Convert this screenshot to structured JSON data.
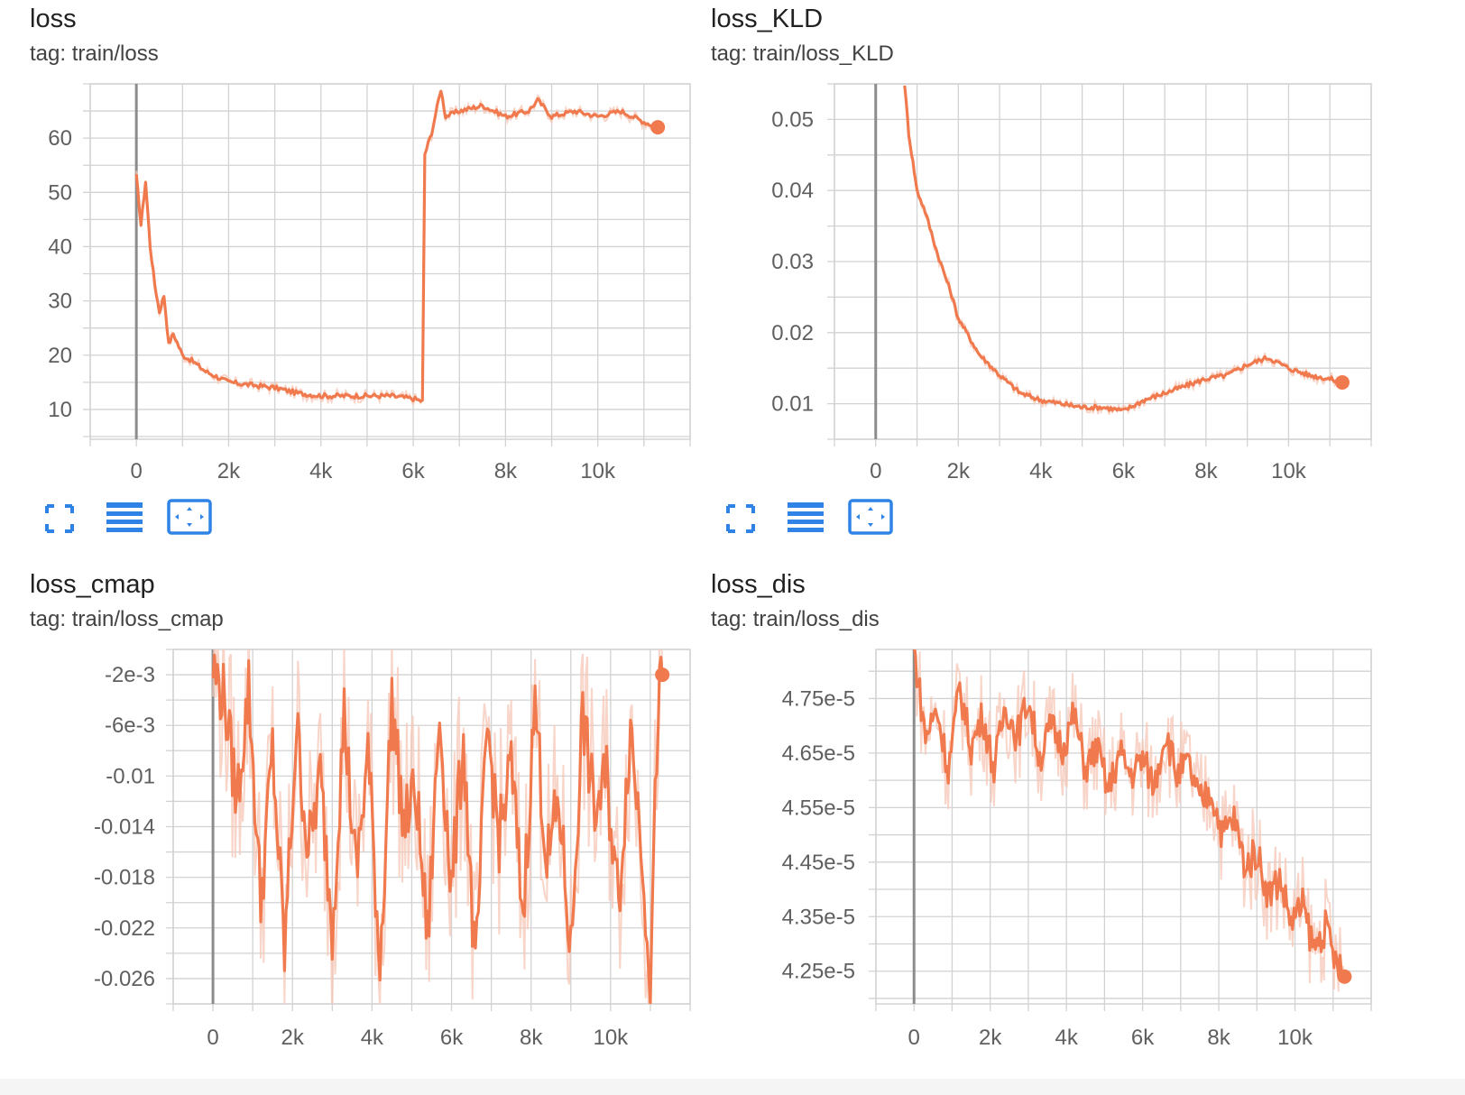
{
  "theme": {
    "line": "#f07a4d",
    "smooth_band": "#f6c7b5",
    "grid": "#d2d2d2",
    "zero_axis": "#8c8c8c",
    "toolbar_icon": "#2f83e6"
  },
  "toolbar": [
    {
      "name": "fullscreen-icon",
      "label": ""
    },
    {
      "name": "data-table-icon",
      "label": ""
    },
    {
      "name": "fit-domain-icon",
      "label": ""
    }
  ],
  "chart_data": [
    {
      "type": "line",
      "title": "loss",
      "tag": "tag: train/loss",
      "xlabel": "",
      "ylabel": "",
      "xlim": [
        -1000,
        12000
      ],
      "ylim": [
        4.5,
        70
      ],
      "xticks": [
        0,
        2000,
        4000,
        6000,
        8000,
        10000
      ],
      "xtick_labels": [
        "0",
        "2k",
        "4k",
        "6k",
        "8k",
        "10k"
      ],
      "yticks": [
        10,
        20,
        30,
        40,
        50,
        60
      ],
      "ytick_labels": [
        "10",
        "20",
        "30",
        "40",
        "50",
        "60"
      ],
      "grid": true,
      "series": [
        {
          "x": [
            0,
            100,
            200,
            300,
            400,
            500,
            600,
            700,
            800,
            1000,
            1200,
            1500,
            2000,
            2500,
            3000,
            3500,
            4000,
            4500,
            5000,
            5500,
            6000,
            6200,
            6250,
            6400,
            6600,
            6700,
            7000,
            7500,
            8000,
            8500,
            8700,
            9000,
            9500,
            10000,
            10500,
            11000,
            11300
          ],
          "y": [
            53,
            44,
            52,
            40,
            33,
            28,
            31,
            22,
            24,
            20,
            19,
            17,
            15,
            14.5,
            14,
            13,
            12.5,
            12.5,
            12.5,
            12.5,
            12,
            11.5,
            57,
            61,
            69,
            64,
            65,
            66,
            64,
            65,
            67,
            64,
            65,
            64,
            65,
            63,
            62
          ]
        }
      ]
    },
    {
      "type": "line",
      "title": "loss_KLD",
      "tag": "tag: train/loss_KLD",
      "xlabel": "",
      "ylabel": "",
      "xlim": [
        -1000,
        12000
      ],
      "ylim": [
        0.005,
        0.055
      ],
      "xticks": [
        0,
        2000,
        4000,
        6000,
        8000,
        10000
      ],
      "xtick_labels": [
        "0",
        "2k",
        "4k",
        "6k",
        "8k",
        "10k"
      ],
      "yticks": [
        0.01,
        0.02,
        0.03,
        0.04,
        0.05
      ],
      "ytick_labels": [
        "0.01",
        "0.02",
        "0.03",
        "0.04",
        "0.05"
      ],
      "grid": true,
      "series": [
        {
          "x": [
            700,
            800,
            900,
            1000,
            1200,
            1500,
            1800,
            2000,
            2500,
            3000,
            3500,
            4000,
            4500,
            5000,
            5500,
            6000,
            6500,
            7000,
            7500,
            8000,
            8500,
            9000,
            9500,
            10000,
            10500,
            11000,
            11300
          ],
          "y": [
            0.055,
            0.048,
            0.044,
            0.04,
            0.037,
            0.031,
            0.026,
            0.022,
            0.017,
            0.014,
            0.0115,
            0.0105,
            0.01,
            0.0095,
            0.0095,
            0.009,
            0.0105,
            0.0115,
            0.0125,
            0.0135,
            0.014,
            0.0155,
            0.0165,
            0.015,
            0.014,
            0.0135,
            0.013
          ]
        }
      ]
    },
    {
      "type": "line",
      "title": "loss_cmap",
      "tag": "tag: train/loss_cmap",
      "xlabel": "",
      "ylabel": "",
      "xlim": [
        -1000,
        12000
      ],
      "ylim": [
        -0.028,
        0
      ],
      "xticks": [
        0,
        2000,
        4000,
        6000,
        8000,
        10000
      ],
      "xtick_labels": [
        "0",
        "2k",
        "4k",
        "6k",
        "8k",
        "10k"
      ],
      "yticks": [
        -0.002,
        -0.006,
        -0.01,
        -0.014,
        -0.018,
        -0.022,
        -0.026
      ],
      "ytick_labels": [
        "-2e-3",
        "-6e-3",
        "-0.01",
        "-0.014",
        "-0.018",
        "-0.022",
        "-0.026"
      ],
      "grid": true,
      "series": [
        {
          "x": [
            0,
            300,
            600,
            900,
            1200,
            1500,
            1800,
            2100,
            2400,
            2700,
            3000,
            3300,
            3600,
            3900,
            4200,
            4500,
            4800,
            5100,
            5400,
            5700,
            6000,
            6300,
            6600,
            6900,
            7200,
            7500,
            7800,
            8100,
            8400,
            8700,
            9000,
            9300,
            9600,
            9900,
            10200,
            10500,
            10800,
            11000,
            11200,
            11300
          ],
          "y": [
            -0.0015,
            -0.004,
            -0.012,
            -0.003,
            -0.02,
            -0.008,
            -0.024,
            -0.006,
            -0.016,
            -0.01,
            -0.022,
            -0.005,
            -0.018,
            -0.008,
            -0.025,
            -0.004,
            -0.014,
            -0.011,
            -0.023,
            -0.005,
            -0.019,
            -0.007,
            -0.026,
            -0.006,
            -0.015,
            -0.009,
            -0.021,
            -0.004,
            -0.017,
            -0.012,
            -0.024,
            -0.005,
            -0.013,
            -0.01,
            -0.02,
            -0.006,
            -0.016,
            -0.026,
            -0.004,
            -0.002
          ]
        }
      ]
    },
    {
      "type": "line",
      "title": "loss_dis",
      "tag": "tag: train/loss_dis",
      "xlabel": "",
      "ylabel": "",
      "xlim": [
        -1000,
        12000
      ],
      "ylim": [
        4.19e-05,
        4.84e-05
      ],
      "xticks": [
        0,
        2000,
        4000,
        6000,
        8000,
        10000
      ],
      "xtick_labels": [
        "0",
        "2k",
        "4k",
        "6k",
        "8k",
        "10k"
      ],
      "yticks": [
        4.25e-05,
        4.35e-05,
        4.45e-05,
        4.55e-05,
        4.65e-05,
        4.75e-05
      ],
      "ytick_labels": [
        "4.25e-5",
        "4.35e-5",
        "4.45e-5",
        "4.55e-5",
        "4.65e-5",
        "4.75e-5"
      ],
      "grid": true,
      "series": [
        {
          "x": [
            0,
            300,
            600,
            900,
            1200,
            1500,
            1800,
            2100,
            2400,
            2700,
            3000,
            3300,
            3600,
            3900,
            4200,
            4500,
            4800,
            5100,
            5400,
            5700,
            6000,
            6300,
            6600,
            6900,
            7200,
            7500,
            7800,
            8100,
            8400,
            8700,
            9000,
            9300,
            9600,
            9900,
            10200,
            10500,
            10800,
            11100,
            11300
          ],
          "y": [
            4.84e-05,
            4.68e-05,
            4.73e-05,
            4.62e-05,
            4.77e-05,
            4.66e-05,
            4.72e-05,
            4.62e-05,
            4.74e-05,
            4.68e-05,
            4.75e-05,
            4.64e-05,
            4.7e-05,
            4.66e-05,
            4.72e-05,
            4.62e-05,
            4.66e-05,
            4.58e-05,
            4.65e-05,
            4.61e-05,
            4.64e-05,
            4.59e-05,
            4.69e-05,
            4.61e-05,
            4.63e-05,
            4.56e-05,
            4.58e-05,
            4.5e-05,
            4.53e-05,
            4.44e-05,
            4.47e-05,
            4.39e-05,
            4.42e-05,
            4.34e-05,
            4.37e-05,
            4.29e-05,
            4.33e-05,
            4.26e-05,
            4.24e-05
          ]
        }
      ]
    }
  ]
}
